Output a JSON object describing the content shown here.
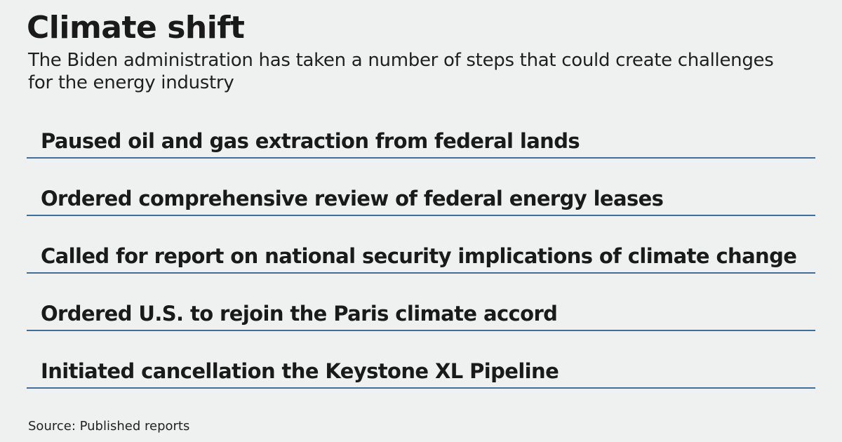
{
  "graphic": {
    "title": "Climate shift",
    "subtitle": "The Biden administration has taken a number of steps that could create challenges for the energy industry",
    "items": [
      {
        "label": "Paused oil and gas extraction from federal lands"
      },
      {
        "label": "Ordered comprehensive review of federal energy leases"
      },
      {
        "label": "Called for report on national security implications of climate change"
      },
      {
        "label": "Ordered U.S. to rejoin the Paris climate accord"
      },
      {
        "label": "Initiated cancellation the Keystone XL Pipeline"
      }
    ],
    "source": "Source: Published reports"
  },
  "colors": {
    "background": "#eff1f0",
    "text": "#1a1a1a",
    "rule": "#3f6f99"
  }
}
